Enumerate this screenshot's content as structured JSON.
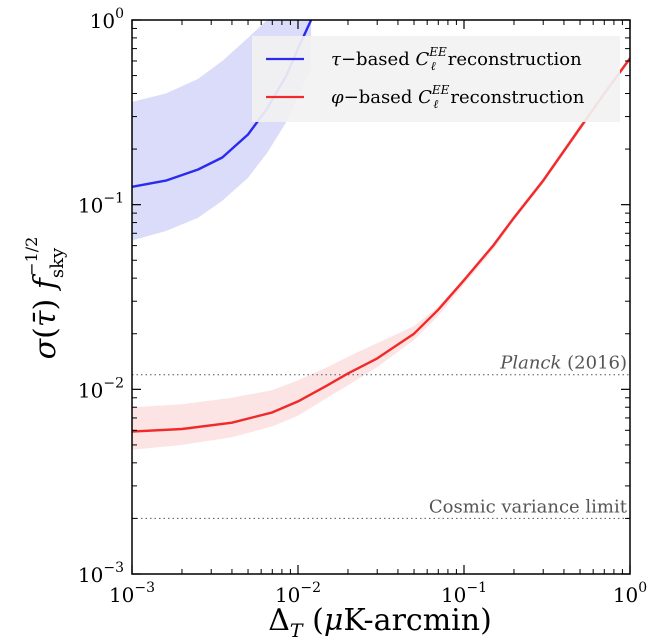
{
  "chart_data": {
    "type": "line",
    "x_scale": "log",
    "y_scale": "log",
    "xlim": [
      0.001,
      1
    ],
    "ylim": [
      0.001,
      1
    ],
    "xlabel": "Δ_T (μK-arcmin)",
    "ylabel": "σ(τ̄) f_sky^(-1/2)",
    "x_ticks": [
      {
        "value": 0.001,
        "base": "10",
        "exp": "−3"
      },
      {
        "value": 0.01,
        "base": "10",
        "exp": "−2"
      },
      {
        "value": 0.1,
        "base": "10",
        "exp": "−1"
      },
      {
        "value": 1,
        "base": "10",
        "exp": "0"
      }
    ],
    "y_ticks": [
      {
        "value": 0.001,
        "base": "10",
        "exp": "−3"
      },
      {
        "value": 0.01,
        "base": "10",
        "exp": "−2"
      },
      {
        "value": 0.1,
        "base": "10",
        "exp": "−1"
      },
      {
        "value": 1,
        "base": "10",
        "exp": "0"
      }
    ],
    "legend_position": "top-right",
    "series": [
      {
        "name": "τ−based C_ℓ^EE reconstruction",
        "color": "#2a2af0",
        "band_color": "#c8c8f8",
        "x": [
          0.001,
          0.0016,
          0.0025,
          0.0035,
          0.005,
          0.0065,
          0.0085,
          0.01,
          0.012
        ],
        "y": [
          0.125,
          0.135,
          0.155,
          0.18,
          0.24,
          0.33,
          0.5,
          0.7,
          1.0
        ],
        "lower": [
          0.064,
          0.072,
          0.085,
          0.105,
          0.14,
          0.19,
          0.28,
          0.38,
          0.55
        ],
        "upper": [
          0.36,
          0.4,
          0.48,
          0.6,
          0.8,
          1.0,
          1.0,
          1.0,
          1.0
        ]
      },
      {
        "name": "φ−based C_ℓ^EE reconstruction",
        "color": "#f02a2a",
        "band_color": "#fbd6d6",
        "x": [
          0.001,
          0.002,
          0.004,
          0.007,
          0.01,
          0.015,
          0.02,
          0.03,
          0.05,
          0.07,
          0.1,
          0.15,
          0.2,
          0.3,
          0.5,
          0.7,
          1.0
        ],
        "y": [
          0.0059,
          0.0061,
          0.0066,
          0.0075,
          0.0086,
          0.0105,
          0.0122,
          0.0147,
          0.02,
          0.027,
          0.039,
          0.06,
          0.085,
          0.135,
          0.26,
          0.4,
          0.62
        ],
        "lower": [
          0.0047,
          0.005,
          0.0055,
          0.0063,
          0.0072,
          0.009,
          0.0105,
          0.0132,
          0.0185,
          0.025,
          0.037,
          0.057,
          0.082,
          0.13,
          0.25,
          0.39,
          0.6
        ],
        "upper": [
          0.008,
          0.0083,
          0.009,
          0.0099,
          0.0112,
          0.0132,
          0.015,
          0.0178,
          0.022,
          0.028,
          0.04,
          0.062,
          0.088,
          0.14,
          0.27,
          0.41,
          0.64
        ]
      }
    ],
    "reference_lines": [
      {
        "label_italic": "Planck",
        "label_rest": " (2016)",
        "y": 0.012
      },
      {
        "label_italic": "",
        "label_rest": "Cosmic variance limit",
        "y": 0.002
      }
    ]
  }
}
